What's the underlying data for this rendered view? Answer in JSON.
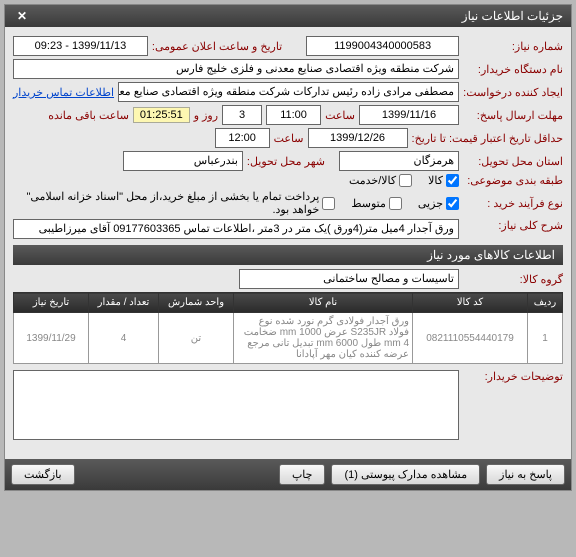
{
  "titlebar": {
    "title": "جزئیات اطلاعات نیاز"
  },
  "req": {
    "lbl_number": "شماره نیاز:",
    "number": "1199004340000583",
    "lbl_announce": "تاریخ و ساعت اعلان عمومی:",
    "announce": "1399/11/13 - 09:23"
  },
  "buyer": {
    "lbl": "نام دستگاه خریدار:",
    "name": "شرکت منطقه ویژه اقتصادی صنایع معدنی و فلزی خلیج فارس"
  },
  "creator": {
    "lbl": "ایجاد کننده درخواست:",
    "name": "مصطفی مرادی زاده رئیس تدارکات شرکت منطقه ویژه اقتصادی صنایع معدنی و فلزی خلیج فارس",
    "contact_link": "اطلاعات تماس خریدار"
  },
  "deadline": {
    "lbl": "مهلت ارسال پاسخ:",
    "date": "1399/11/16",
    "time_lbl": "ساعت",
    "time": "11:00",
    "days": "3",
    "days_lbl": "روز و",
    "timer": "01:25:51",
    "remain_lbl": "ساعت باقی مانده"
  },
  "valid": {
    "lbl": "حداقل تاریخ اعتبار قیمت: تا تاریخ:",
    "date": "1399/12/26",
    "time_lbl": "ساعت",
    "time": "12:00"
  },
  "deliver": {
    "lbl_province": "استان محل تحویل:",
    "province": "هرمزگان",
    "lbl_city": "شهر محل تحویل:",
    "city": "بندرعباس"
  },
  "budget": {
    "lbl": "طبقه بندی موضوعی:",
    "cb_goods": "کالا",
    "cb_service": "کالا/خدمت"
  },
  "purchase": {
    "lbl": "نوع فرآیند خرید :",
    "cb_small": "جزیی",
    "cb_medium": "متوسط",
    "note": "پرداخت تمام یا بخشی از مبلغ خرید،از محل \"اسناد خزانه اسلامی\" خواهد بود."
  },
  "title": {
    "lbl": "شرح کلی نیاز:",
    "text": "ورق آجدار 4میل متر(4ورق )یک متر در 3متر ،اطلاعات تماس 09177603365 آقای میرزاطیبی"
  },
  "items_section": "اطلاعات کالاهای مورد نیاز",
  "group": {
    "lbl": "گروه کالا:",
    "value": "تاسیسات و مصالح ساختمانی"
  },
  "table": {
    "cols": [
      "ردیف",
      "کد کالا",
      "نام کالا",
      "واحد شمارش",
      "تعداد / مقدار",
      "تاریخ نیاز"
    ],
    "rows": [
      {
        "idx": "1",
        "code": "0821110554440179",
        "name": "ورق آجدار فولادی گرم نورد شده نوع فولاد S235JR عرض mm 1000 ضخامت mm 4 طول mm 6000 تبدیل تانی مرجع عرضه کننده کیان مهر آپادانا",
        "unit": "تن",
        "qty": "4",
        "date": "1399/11/29"
      }
    ]
  },
  "buyer_note": {
    "lbl": "توضیحات خریدار:"
  },
  "footer": {
    "reply": "پاسخ به نیاز",
    "attach": "مشاهده مدارک پیوستی (1)",
    "print": "چاپ",
    "back": "بازگشت"
  }
}
